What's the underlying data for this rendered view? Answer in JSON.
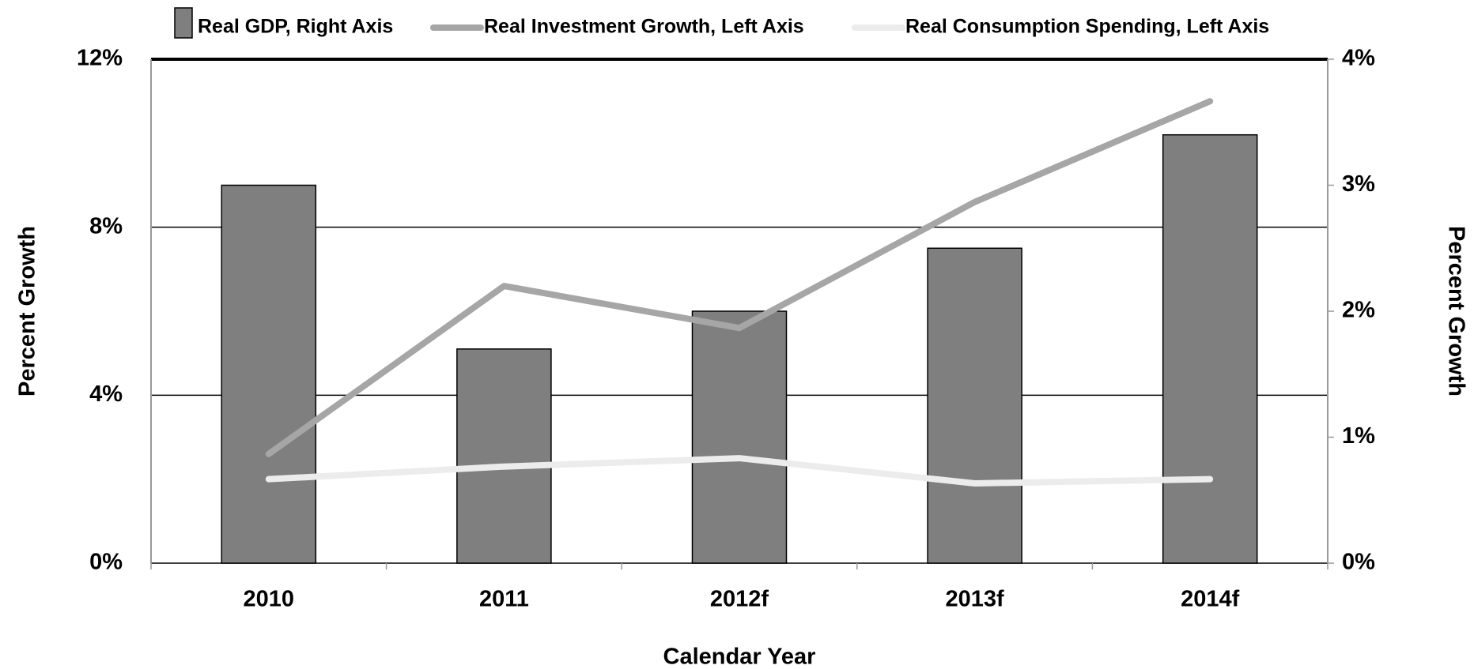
{
  "chart_data": {
    "type": "bar-line",
    "categories": [
      "2010",
      "2011",
      "2012f",
      "2013f",
      "2014f"
    ],
    "series": [
      {
        "name": "Real GDP, Right Axis",
        "type": "bar",
        "axis": "y2",
        "color": "#7f7f7f",
        "values": [
          3.0,
          1.7,
          2.0,
          2.5,
          3.4
        ]
      },
      {
        "name": "Real Investment Growth, Left Axis",
        "type": "line",
        "axis": "y",
        "color": "#a6a6a6",
        "values": [
          2.6,
          6.6,
          5.6,
          8.6,
          11.0
        ]
      },
      {
        "name": "Real Consumption Spending, Left Axis",
        "type": "line",
        "axis": "y",
        "color": "#ececec",
        "values": [
          2.0,
          2.3,
          2.5,
          1.9,
          2.0
        ]
      }
    ],
    "ylim": [
      0,
      12
    ],
    "yticks": [
      {
        "value": 0,
        "label": "0%"
      },
      {
        "value": 4,
        "label": "4%"
      },
      {
        "value": 8,
        "label": "8%"
      },
      {
        "value": 12,
        "label": "12%"
      }
    ],
    "y2lim": [
      0,
      4
    ],
    "y2ticks": [
      {
        "value": 0,
        "label": "0%"
      },
      {
        "value": 1,
        "label": "1%"
      },
      {
        "value": 2,
        "label": "2%"
      },
      {
        "value": 3,
        "label": "3%"
      },
      {
        "value": 4,
        "label": "4%"
      }
    ],
    "ylabel": "Percent Growth",
    "y2label": "Percent Growth",
    "xlabel": "Calendar Year",
    "grid": true,
    "legend": "top"
  }
}
